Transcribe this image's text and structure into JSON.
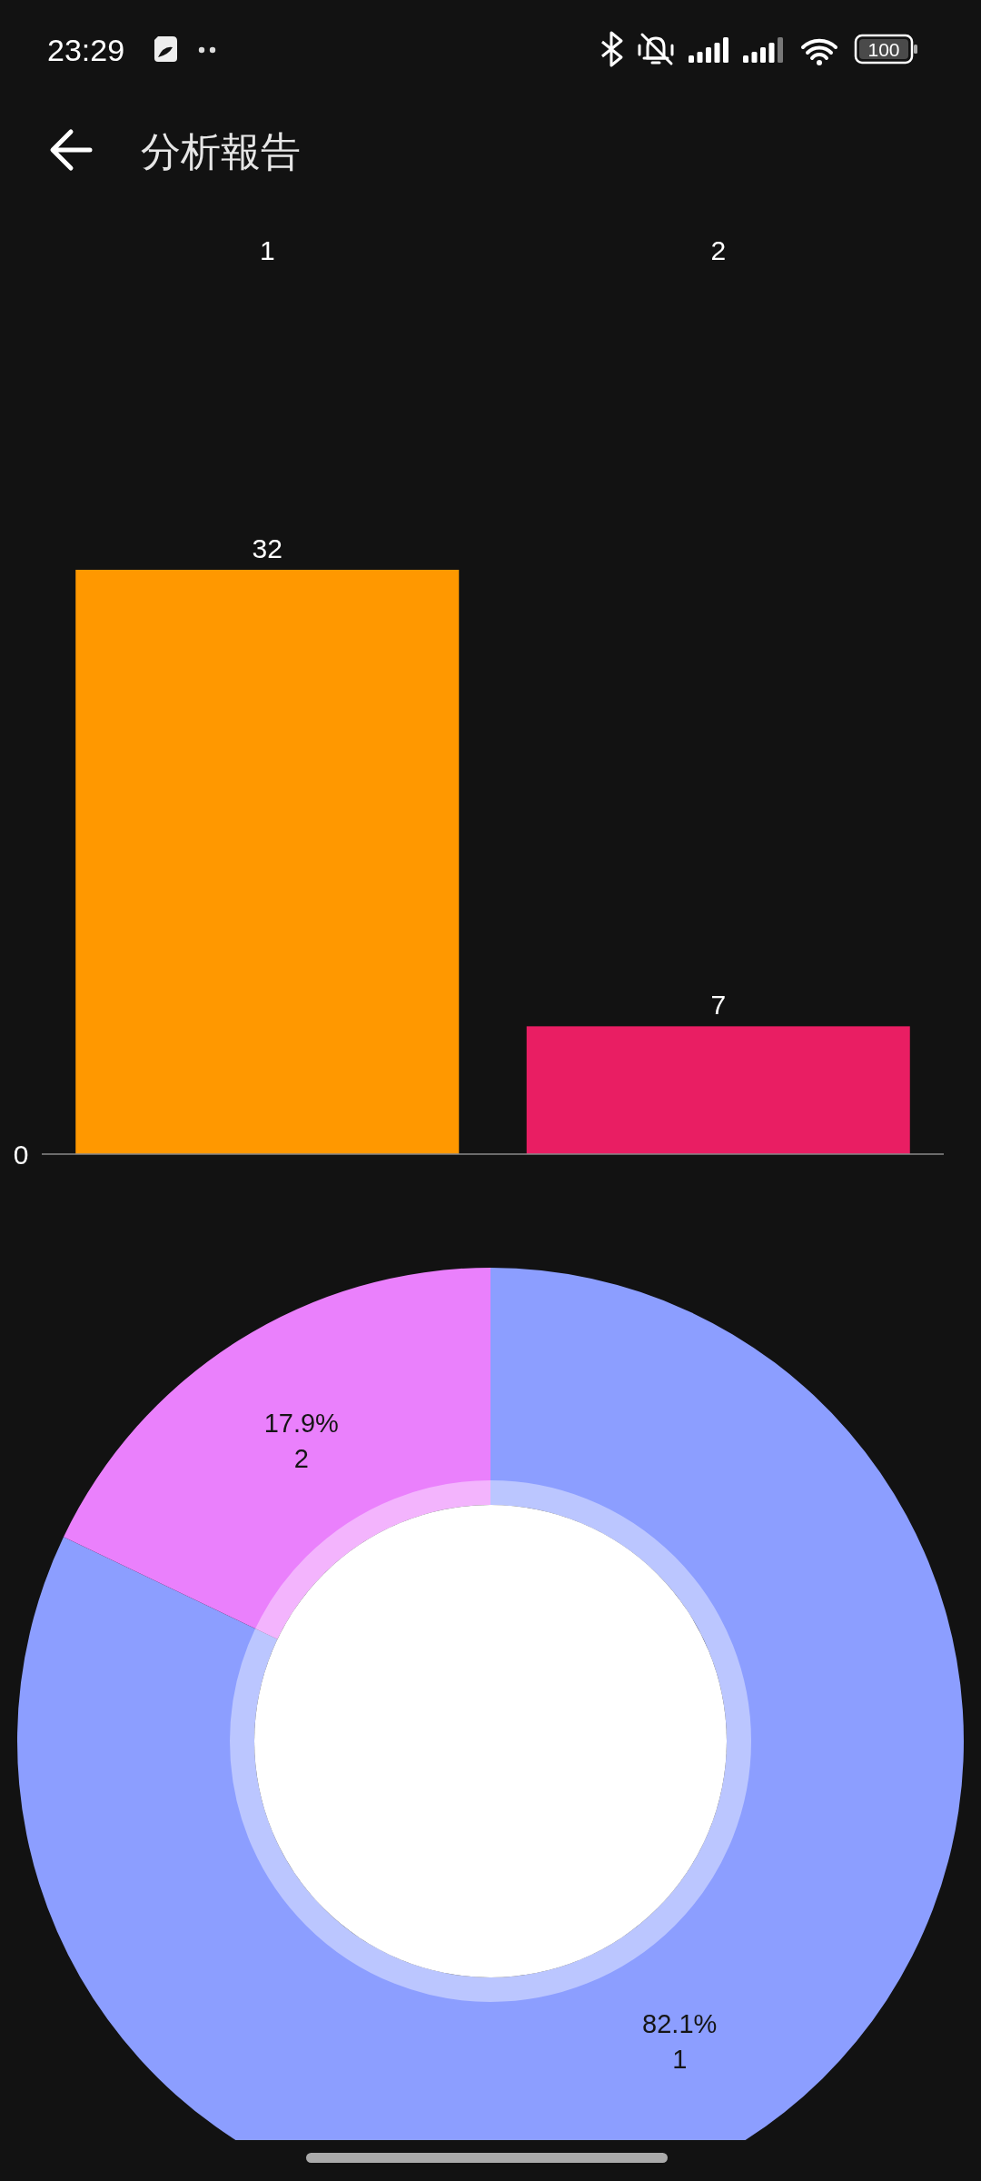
{
  "chart_data": [
    {
      "type": "bar",
      "title": "分析報告",
      "annotations": [
        "23:29",
        "100",
        "0"
      ],
      "categories": [
        "1",
        "2"
      ],
      "values": [
        32,
        7
      ],
      "colors": [
        "#ff9800",
        "#e91e63"
      ],
      "data_labels": true
    },
    {
      "type": "donut",
      "categories": [
        "1",
        "2"
      ],
      "values": [
        82.1,
        17.9
      ],
      "colors": [
        "#8c9eff",
        "#ea80fc"
      ],
      "value_labels": [
        "82.1%",
        "17.9%"
      ]
    }
  ]
}
